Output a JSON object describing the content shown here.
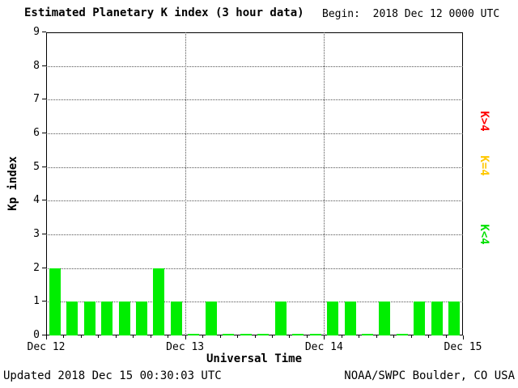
{
  "header": {
    "begin_text": "Begin:  2018 Dec 12 0000 UTC"
  },
  "chart_data": {
    "type": "bar",
    "title": "Estimated Planetary K index (3 hour data)",
    "xlabel": "Universal Time",
    "ylabel": "Kp index",
    "ylim": [
      0,
      9
    ],
    "yticks": [
      0,
      1,
      2,
      3,
      4,
      5,
      6,
      7,
      8,
      9
    ],
    "x_day_labels": [
      "Dec 12",
      "Dec 13",
      "Dec 14",
      "Dec 15"
    ],
    "bars_per_day": 8,
    "hours_per_bar": 3,
    "values": [
      2,
      1,
      1,
      1,
      1,
      1,
      2,
      1,
      0,
      1,
      0,
      0,
      0,
      1,
      0,
      0,
      1,
      1,
      0,
      1,
      0,
      1,
      1,
      1
    ],
    "grid": true,
    "colors": {
      "low": "#00ee00",
      "mid": "#ffc800",
      "high": "#ff0000"
    },
    "legend_position": "right",
    "legend": [
      {
        "label": "K>4",
        "color": "#ff0000"
      },
      {
        "label": "K=4",
        "color": "#ffc800"
      },
      {
        "label": "K<4",
        "color": "#00e000"
      }
    ]
  },
  "footer": {
    "updated": "Updated 2018 Dec 15 00:30:03 UTC",
    "source": "NOAA/SWPC Boulder, CO USA"
  }
}
